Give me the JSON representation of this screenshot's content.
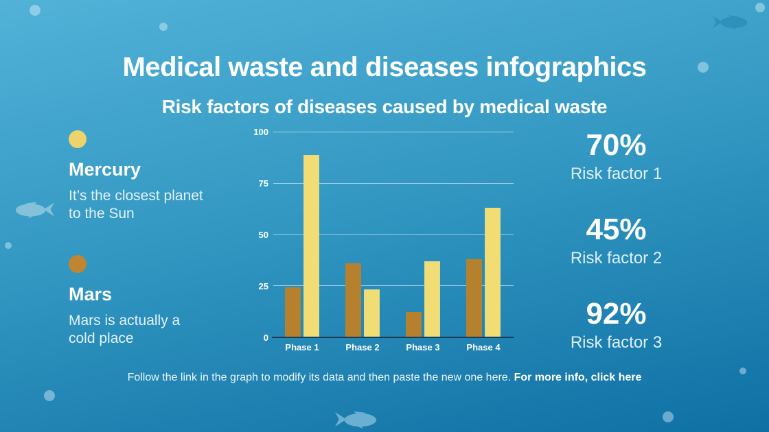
{
  "title": "Medical waste and diseases infographics",
  "subtitle": "Risk factors of diseases caused by medical waste",
  "legend": {
    "items": [
      {
        "name": "Mercury",
        "description": "It’s the closest planet to the Sun",
        "color": "#ECD36B"
      },
      {
        "name": "Mars",
        "description": "Mars is actually a cold place",
        "color": "#BF8530"
      }
    ]
  },
  "chart_data": {
    "type": "bar",
    "categories": [
      "Phase 1",
      "Phase 2",
      "Phase 3",
      "Phase 4"
    ],
    "series": [
      {
        "name": "Mars",
        "color": "#B5812E",
        "values": [
          24,
          36,
          12,
          38
        ]
      },
      {
        "name": "Mercury",
        "color": "#F2DC74",
        "border": "#DBDA90",
        "values": [
          89,
          23,
          37,
          63
        ]
      }
    ],
    "title": "",
    "xlabel": "",
    "ylabel": "",
    "ylim": [
      0,
      100
    ],
    "yticks": [
      0,
      25,
      50,
      75,
      100
    ],
    "grid": true,
    "legend_position": "outside-left"
  },
  "stats": [
    {
      "value": "70%",
      "label": "Risk factor 1"
    },
    {
      "value": "45%",
      "label": "Risk factor 2"
    },
    {
      "value": "92%",
      "label": "Risk factor 3"
    }
  ],
  "footer": {
    "text": "Follow the link in the graph to modify its data and then paste the new one here.",
    "link_text": "For more info, click here"
  },
  "colors": {
    "background_top": "#52B2D8",
    "background_bottom": "#0F70A4",
    "bar_brown": "#B5812E",
    "bar_yellow": "#F2DC74",
    "text_primary": "#FFFFFF",
    "text_secondary": "#E3F2FA",
    "gridline": "rgba(255,255,255,0.55)",
    "axis_line": "#1B3A54"
  },
  "decorations": {
    "fish_icon": "fish-silhouette",
    "bubble_icon": "circle",
    "fish_count": 3,
    "bubble_count": 8
  }
}
